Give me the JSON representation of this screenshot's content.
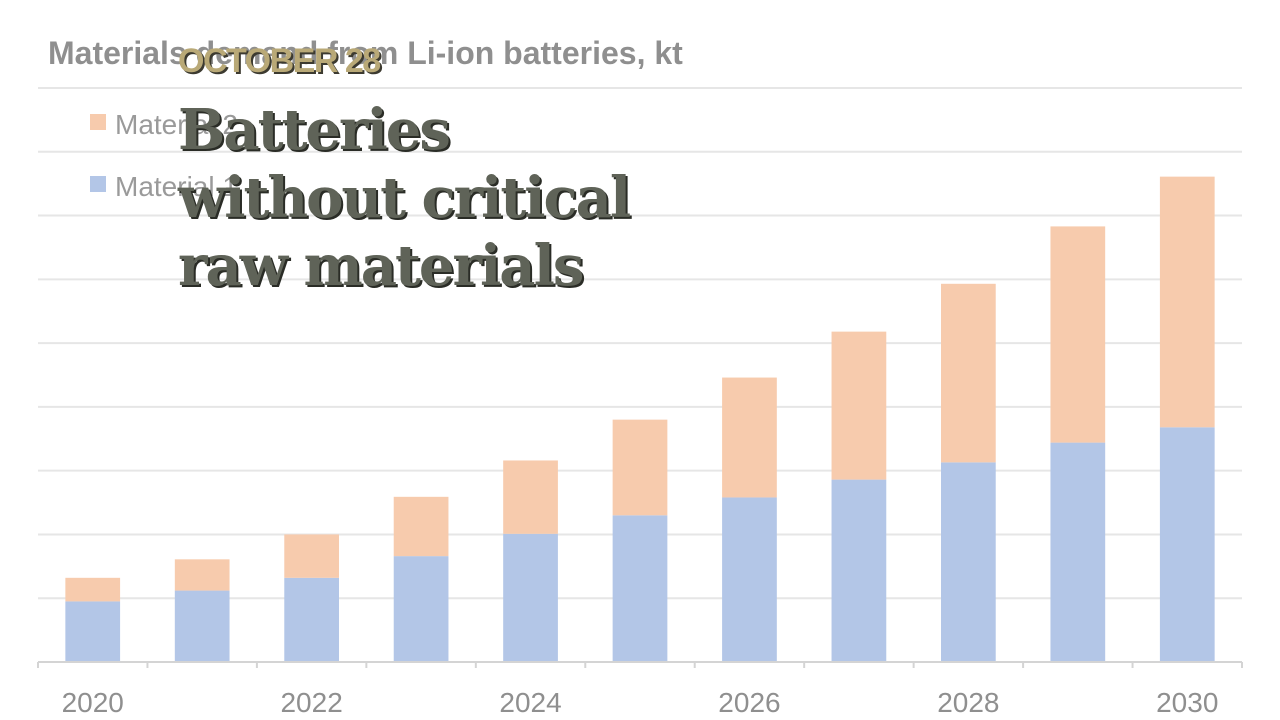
{
  "post": {
    "date": "OCTOBER 28",
    "headline": "Batteries without critical raw materials"
  },
  "chart_data": {
    "type": "bar",
    "stacked": true,
    "title": "Materials demand from Li-ion batteries, kt",
    "categories": [
      "2020",
      "2021",
      "2022",
      "2023",
      "2024",
      "2025",
      "2026",
      "2027",
      "2028",
      "2029",
      "2030"
    ],
    "x_tick_labels": [
      "2020",
      "2022",
      "2024",
      "2026",
      "2028",
      "2030"
    ],
    "series": [
      {
        "name": "Material 1",
        "color": "#b3c6e7",
        "values": [
          9.5,
          11.2,
          13.2,
          16.6,
          20.1,
          23.0,
          25.8,
          28.6,
          31.3,
          34.4,
          36.8
        ]
      },
      {
        "name": "Material 2",
        "color": "#f7cbad",
        "values": [
          3.7,
          4.9,
          6.8,
          9.3,
          11.5,
          15.0,
          18.8,
          23.2,
          28.0,
          33.9,
          39.3
        ]
      }
    ],
    "ylim": [
      0,
      90
    ],
    "grid": true,
    "legend_position": "top-left"
  }
}
